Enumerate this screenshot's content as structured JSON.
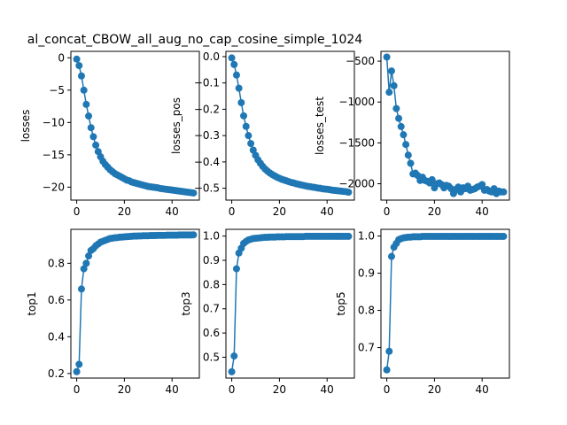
{
  "title": "al_concat_CBOW_all_aug_no_cap_cosine_simple_1024",
  "colors": {
    "series": "#1f77b4",
    "axes": "#000000",
    "background": "#ffffff"
  },
  "chart_data": [
    {
      "type": "line",
      "ylabel": "losses",
      "xlim": [
        -2.45,
        51.45
      ],
      "ylim": [
        -22.0,
        1.0
      ],
      "xticks": [
        0,
        20,
        40
      ],
      "xtick_labels": [
        "0",
        "20",
        "40"
      ],
      "yticks": [
        0,
        -5,
        -10,
        -15,
        -20
      ],
      "ytick_labels": [
        "0",
        "−5",
        "−10",
        "−15",
        "−20"
      ],
      "x": [
        0,
        1,
        2,
        3,
        4,
        5,
        6,
        7,
        8,
        9,
        10,
        11,
        12,
        13,
        14,
        15,
        16,
        17,
        18,
        19,
        20,
        21,
        22,
        23,
        24,
        25,
        26,
        27,
        28,
        29,
        30,
        31,
        32,
        33,
        34,
        35,
        36,
        37,
        38,
        39,
        40,
        41,
        42,
        43,
        44,
        45,
        46,
        47,
        48,
        49
      ],
      "y": [
        -0.2,
        -1.2,
        -2.8,
        -5.0,
        -7.2,
        -9.0,
        -10.8,
        -12.2,
        -13.5,
        -14.5,
        -15.3,
        -16.0,
        -16.5,
        -16.9,
        -17.3,
        -17.6,
        -17.9,
        -18.1,
        -18.3,
        -18.5,
        -18.7,
        -18.9,
        -19.0,
        -19.2,
        -19.3,
        -19.4,
        -19.5,
        -19.6,
        -19.7,
        -19.8,
        -19.9,
        -19.95,
        -20.0,
        -20.05,
        -20.1,
        -20.2,
        -20.25,
        -20.3,
        -20.35,
        -20.4,
        -20.45,
        -20.5,
        -20.55,
        -20.6,
        -20.65,
        -20.7,
        -20.75,
        -20.8,
        -20.85,
        -20.9
      ]
    },
    {
      "type": "line",
      "ylabel": "losses_pos",
      "xlim": [
        -2.45,
        51.45
      ],
      "ylim": [
        -0.545,
        0.02
      ],
      "xticks": [
        0,
        20,
        40
      ],
      "xtick_labels": [
        "0",
        "20",
        "40"
      ],
      "yticks": [
        0.0,
        -0.1,
        -0.2,
        -0.3,
        -0.4,
        -0.5
      ],
      "ytick_labels": [
        "0.0",
        "−0.1",
        "−0.2",
        "−0.3",
        "−0.4",
        "−0.5"
      ],
      "x": [
        0,
        1,
        2,
        3,
        4,
        5,
        6,
        7,
        8,
        9,
        10,
        11,
        12,
        13,
        14,
        15,
        16,
        17,
        18,
        19,
        20,
        21,
        22,
        23,
        24,
        25,
        26,
        27,
        28,
        29,
        30,
        31,
        32,
        33,
        34,
        35,
        36,
        37,
        38,
        39,
        40,
        41,
        42,
        43,
        44,
        45,
        46,
        47,
        48,
        49
      ],
      "y": [
        -0.005,
        -0.03,
        -0.07,
        -0.12,
        -0.175,
        -0.225,
        -0.265,
        -0.3,
        -0.33,
        -0.355,
        -0.375,
        -0.392,
        -0.405,
        -0.417,
        -0.427,
        -0.435,
        -0.442,
        -0.448,
        -0.453,
        -0.458,
        -0.462,
        -0.466,
        -0.469,
        -0.472,
        -0.475,
        -0.478,
        -0.48,
        -0.483,
        -0.485,
        -0.487,
        -0.489,
        -0.491,
        -0.493,
        -0.494,
        -0.496,
        -0.497,
        -0.499,
        -0.5,
        -0.502,
        -0.503,
        -0.504,
        -0.505,
        -0.507,
        -0.508,
        -0.509,
        -0.51,
        -0.511,
        -0.512,
        -0.513,
        -0.515
      ]
    },
    {
      "type": "line",
      "ylabel": "losses_test",
      "xlim": [
        -2.45,
        51.45
      ],
      "ylim": [
        -2200,
        -380
      ],
      "xticks": [
        0,
        20,
        40
      ],
      "xtick_labels": [
        "0",
        "20",
        "40"
      ],
      "yticks": [
        -500,
        -1000,
        -1500,
        -2000
      ],
      "ytick_labels": [
        "−500",
        "−1000",
        "−1500",
        "−2000"
      ],
      "x": [
        0,
        1,
        2,
        3,
        4,
        5,
        6,
        7,
        8,
        9,
        10,
        11,
        12,
        13,
        14,
        15,
        16,
        17,
        18,
        19,
        20,
        21,
        22,
        23,
        24,
        25,
        26,
        27,
        28,
        29,
        30,
        31,
        32,
        33,
        34,
        35,
        36,
        37,
        38,
        39,
        40,
        41,
        42,
        43,
        44,
        45,
        46,
        47,
        48,
        49
      ],
      "y": [
        -450,
        -880,
        -620,
        -800,
        -1080,
        -1200,
        -1300,
        -1400,
        -1520,
        -1650,
        -1750,
        -1880,
        -1870,
        -1900,
        -1960,
        -1920,
        -1960,
        -1970,
        -1990,
        -1950,
        -2050,
        -2000,
        -1990,
        -2010,
        -2050,
        -2020,
        -2030,
        -2060,
        -2120,
        -2070,
        -2040,
        -2100,
        -2050,
        -2060,
        -2030,
        -2080,
        -2070,
        -2060,
        -2040,
        -2030,
        -2010,
        -2080,
        -2070,
        -2090,
        -2100,
        -2060,
        -2120,
        -2090,
        -2100,
        -2100
      ]
    },
    {
      "type": "line",
      "ylabel": "top1",
      "xlim": [
        -2.45,
        51.45
      ],
      "ylim": [
        0.175,
        0.985
      ],
      "xticks": [
        0,
        20,
        40
      ],
      "xtick_labels": [
        "0",
        "20",
        "40"
      ],
      "yticks": [
        0.2,
        0.4,
        0.6,
        0.8
      ],
      "ytick_labels": [
        "0.2",
        "0.4",
        "0.6",
        "0.8"
      ],
      "x": [
        0,
        1,
        2,
        3,
        4,
        5,
        6,
        7,
        8,
        9,
        10,
        11,
        12,
        13,
        14,
        15,
        16,
        17,
        18,
        19,
        20,
        21,
        22,
        23,
        24,
        25,
        26,
        27,
        28,
        29,
        30,
        31,
        32,
        33,
        34,
        35,
        36,
        37,
        38,
        39,
        40,
        41,
        42,
        43,
        44,
        45,
        46,
        47,
        48,
        49
      ],
      "y": [
        0.21,
        0.25,
        0.66,
        0.77,
        0.8,
        0.84,
        0.87,
        0.88,
        0.895,
        0.905,
        0.915,
        0.92,
        0.925,
        0.93,
        0.935,
        0.937,
        0.939,
        0.94,
        0.942,
        0.943,
        0.944,
        0.945,
        0.946,
        0.947,
        0.948,
        0.948,
        0.949,
        0.949,
        0.95,
        0.95,
        0.95,
        0.951,
        0.951,
        0.951,
        0.952,
        0.952,
        0.952,
        0.952,
        0.953,
        0.953,
        0.953,
        0.953,
        0.953,
        0.954,
        0.954,
        0.954,
        0.954,
        0.954,
        0.954,
        0.955
      ]
    },
    {
      "type": "line",
      "ylabel": "top3",
      "xlim": [
        -2.45,
        51.45
      ],
      "ylim": [
        0.414,
        1.028
      ],
      "xticks": [
        0,
        20,
        40
      ],
      "xtick_labels": [
        "0",
        "20",
        "40"
      ],
      "yticks": [
        0.5,
        0.6,
        0.7,
        0.8,
        0.9,
        1.0
      ],
      "ytick_labels": [
        "0.5",
        "0.6",
        "0.7",
        "0.8",
        "0.9",
        "1.0"
      ],
      "x": [
        0,
        1,
        2,
        3,
        4,
        5,
        6,
        7,
        8,
        9,
        10,
        11,
        12,
        13,
        14,
        15,
        16,
        17,
        18,
        19,
        20,
        21,
        22,
        23,
        24,
        25,
        26,
        27,
        28,
        29,
        30,
        31,
        32,
        33,
        34,
        35,
        36,
        37,
        38,
        39,
        40,
        41,
        42,
        43,
        44,
        45,
        46,
        47,
        48,
        49
      ],
      "y": [
        0.44,
        0.505,
        0.865,
        0.93,
        0.95,
        0.97,
        0.978,
        0.984,
        0.987,
        0.99,
        0.991,
        0.992,
        0.993,
        0.994,
        0.995,
        0.995,
        0.996,
        0.996,
        0.996,
        0.997,
        0.997,
        0.997,
        0.997,
        0.998,
        0.998,
        0.998,
        0.998,
        0.998,
        0.998,
        0.998,
        0.998,
        0.999,
        0.999,
        0.999,
        0.999,
        0.999,
        0.999,
        0.999,
        0.999,
        0.999,
        0.999,
        0.999,
        0.999,
        0.999,
        0.999,
        0.999,
        0.999,
        0.999,
        0.999,
        0.999
      ]
    },
    {
      "type": "line",
      "ylabel": "top5",
      "xlim": [
        -2.45,
        51.45
      ],
      "ylim": [
        0.618,
        1.018
      ],
      "xticks": [
        0,
        20,
        40
      ],
      "xtick_labels": [
        "0",
        "20",
        "40"
      ],
      "yticks": [
        0.7,
        0.8,
        0.9,
        1.0
      ],
      "ytick_labels": [
        "0.7",
        "0.8",
        "0.9",
        "1.0"
      ],
      "x": [
        0,
        1,
        2,
        3,
        4,
        5,
        6,
        7,
        8,
        9,
        10,
        11,
        12,
        13,
        14,
        15,
        16,
        17,
        18,
        19,
        20,
        21,
        22,
        23,
        24,
        25,
        26,
        27,
        28,
        29,
        30,
        31,
        32,
        33,
        34,
        35,
        36,
        37,
        38,
        39,
        40,
        41,
        42,
        43,
        44,
        45,
        46,
        47,
        48,
        49
      ],
      "y": [
        0.64,
        0.69,
        0.945,
        0.97,
        0.98,
        0.99,
        0.993,
        0.995,
        0.996,
        0.997,
        0.997,
        0.998,
        0.998,
        0.998,
        0.998,
        0.999,
        0.999,
        0.999,
        0.999,
        0.999,
        0.999,
        0.999,
        0.999,
        0.999,
        0.999,
        0.999,
        0.999,
        0.999,
        0.999,
        0.999,
        0.999,
        0.999,
        0.999,
        0.999,
        0.999,
        0.999,
        0.999,
        0.999,
        0.999,
        0.999,
        0.999,
        0.999,
        0.999,
        0.999,
        0.999,
        0.999,
        0.999,
        0.999,
        0.999,
        0.999
      ]
    }
  ]
}
